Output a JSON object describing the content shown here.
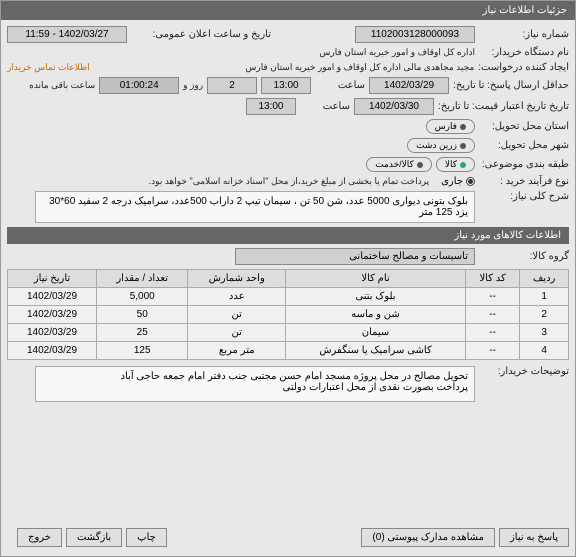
{
  "window": {
    "title": "جزئیات اطلاعات نیاز"
  },
  "header": {
    "number_label": "شماره نیاز:",
    "number": "1102003128000093",
    "pubdate_label": "تاریخ و ساعت اعلان عمومی:",
    "pubdate": "1402/03/27 - 11:59",
    "buyer_label": "نام دستگاه خریدار:",
    "buyer": "اداره کل اوقاف و امور خیریه استان فارس",
    "requester_label": "ایجاد کننده درخواست:",
    "requester": "مجید مجاهدی مالی اداره کل اوقاف و امور خیریه استان فارس",
    "contact_link": "اطلاعات تماس خریدار",
    "deadline_label": "حداقل ارسال پاسخ: تا تاریخ:",
    "deadline_date": "1402/03/29",
    "deadline_time": "13:00",
    "saat": "ساعت",
    "roz_va": "روز و",
    "days": "2",
    "remaining": "01:00:24",
    "remaining_label": "ساعت باقی مانده",
    "validity_label": "تاریخ تاریخ اعتبار قیمت: تا تاریخ:",
    "validity_date": "1402/03/30",
    "validity_time": "13:00",
    "province_label": "استان محل تحویل:",
    "province": "فارس",
    "city_label": "شهر محل تحویل:",
    "city": "زرین دشت",
    "budget_label": "طبقه بندی موضوعی:",
    "tag_kala": "کالا",
    "tag_khidmat": "کالا/خدمت",
    "process_label": "نوع فرآیند خرید :",
    "process_jari": "جاری",
    "process_note": "پرداخت تمام یا بخشی از مبلغ خرید،از محل \"اسناد خزانه اسلامی\" خواهد بود.",
    "sharh_label": "شرح کلی نیاز:",
    "sharh_text": "بلوک بتونی دیواری 5000 عدد، شن 50 تن ، سیمان تیپ 2 داراب 500عدد، سرامیک درجه 2 سفید 60*30 یزد 125 متر"
  },
  "items_section": {
    "title": "اطلاعات کالاهای مورد نیاز",
    "group_label": "گروه کالا:",
    "group": "تاسیسات و مصالح ساختمانی",
    "cols": [
      "ردیف",
      "کد کالا",
      "نام کالا",
      "واحد شمارش",
      "تعداد / مقدار",
      "تاریخ نیاز"
    ],
    "rows": [
      [
        "1",
        "--",
        "بلوک بتنی",
        "عدد",
        "5,000",
        "1402/03/29"
      ],
      [
        "2",
        "--",
        "شن و ماسه",
        "تن",
        "50",
        "1402/03/29"
      ],
      [
        "3",
        "--",
        "سیمان",
        "تن",
        "25",
        "1402/03/29"
      ],
      [
        "4",
        "--",
        "کاشی سرامیک یا سنگفرش",
        "متر مربع",
        "125",
        "1402/03/29"
      ]
    ]
  },
  "buyer_note": {
    "label": "توضیحات خریدار:",
    "text": "تحویل مصالح در محل پروژه مسجد امام حسن مجتبی جنب دفتر امام جمعه حاجی آباد\nپرداخت بصورت نقدی از محل اعتبارات دولتی"
  },
  "footer": {
    "reply": "پاسخ به نیاز",
    "attach": "مشاهده مدارک پیوستی (0)",
    "print": "چاپ",
    "back": "بازگشت",
    "exit": "خروج"
  }
}
